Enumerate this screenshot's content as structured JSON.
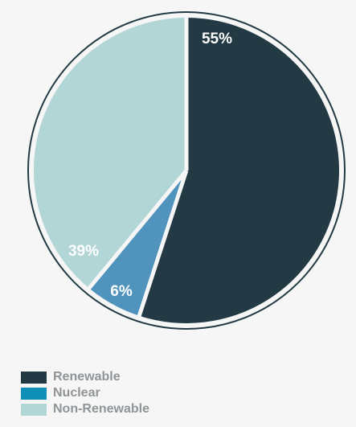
{
  "chart_data": {
    "type": "pie",
    "title": "",
    "slices": [
      {
        "name": "Renewable",
        "value": 55,
        "label": "55%",
        "color": "#233a44"
      },
      {
        "name": "Nuclear",
        "value": 6,
        "label": "6%",
        "color": "#5093bd"
      },
      {
        "name": "Non-Renewable",
        "value": 39,
        "label": "39%",
        "color": "#b2d6d6"
      }
    ],
    "legend_placement": "bottom-left",
    "legend": [
      {
        "label": "Renewable",
        "color": "#233a44"
      },
      {
        "label": "Nuclear",
        "color": "#0e8fb7"
      },
      {
        "label": "Non-Renewable",
        "color": "#b2d6d6"
      }
    ],
    "ring_color": "#233a44",
    "background": "#f6f6f6"
  }
}
